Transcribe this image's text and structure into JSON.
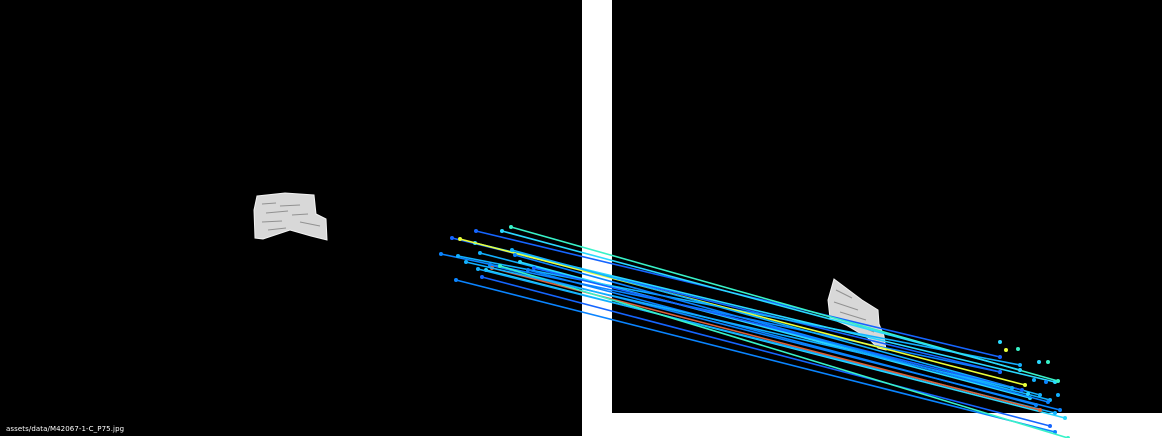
{
  "caption": "assets/data/M42067-1-C_P75.jpg",
  "colors": {
    "background": "#ffffff",
    "panel": "#000000",
    "fragment": "#d9d9d9",
    "match_palette": [
      "#1565ff",
      "#0a84ff",
      "#12b0ff",
      "#2ad8ff",
      "#38f2c8",
      "#eaff3a",
      "#d9603a"
    ]
  }
}
